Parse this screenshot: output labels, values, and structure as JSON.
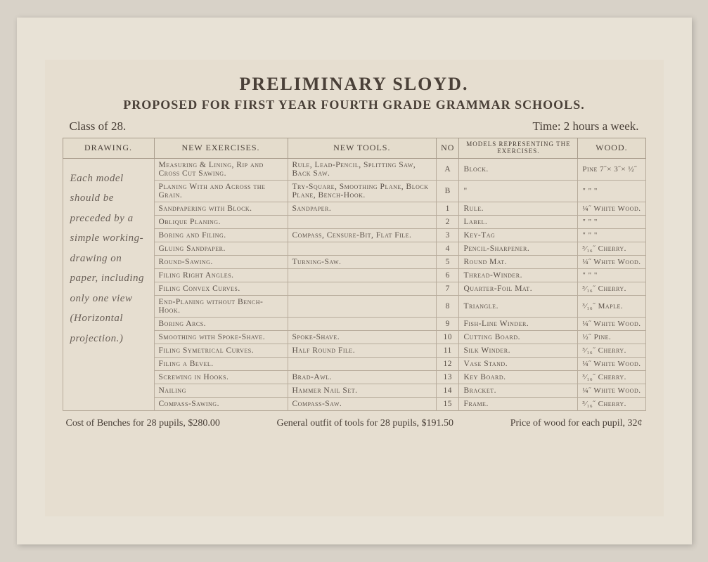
{
  "title": "PRELIMINARY SLOYD.",
  "subtitle": "PROPOSED FOR FIRST YEAR FOURTH GRADE GRAMMAR SCHOOLS.",
  "meta_left": "Class of 28.",
  "meta_right": "Time: 2 hours a week.",
  "columns": {
    "drawing": "DRAWING.",
    "exercises": "NEW EXERCISES.",
    "tools": "NEW TOOLS.",
    "no": "No",
    "models": "MODELS REPRESENTING THE EXERCISES.",
    "wood": "WOOD."
  },
  "drawing_note": "Each model should be preceded by a simple working-drawing on paper, including only one view (Horizontal projection.)",
  "rows": [
    {
      "ex": "Measuring & Lining, Rip and Cross Cut Sawing.",
      "tool": "Rule, Lead-Pencil, Splitting Saw, Back Saw.",
      "no": "A",
      "model": "Block.",
      "wood": "Pine 7˝× 3˝× ½˝"
    },
    {
      "ex": "Planing With and Across the Grain.",
      "tool": "Try-Square, Smoothing Plane, Block Plane, Bench-Hook.",
      "no": "B",
      "model": "\"",
      "wood": "\"   \"   \""
    },
    {
      "ex": "Sandpapering with Block.",
      "tool": "Sandpaper.",
      "no": "1",
      "model": "Rule.",
      "wood": "¼˝ White Wood."
    },
    {
      "ex": "Oblique Planing.",
      "tool": "",
      "no": "2",
      "model": "Label.",
      "wood": "\"   \"   \""
    },
    {
      "ex": "Boring and Filing.",
      "tool": "Compass, Censure-Bit, Flat File.",
      "no": "3",
      "model": "Key-Tag",
      "wood": "\"   \"   \""
    },
    {
      "ex": "Gluing Sandpaper.",
      "tool": "",
      "no": "4",
      "model": "Pencil-Sharpener.",
      "wood": "³⁄₁₆˝ Cherry."
    },
    {
      "ex": "Round-Sawing.",
      "tool": "Turning-Saw.",
      "no": "5",
      "model": "Round Mat.",
      "wood": "¼˝ White Wood."
    },
    {
      "ex": "Filing Right Angles.",
      "tool": "",
      "no": "6",
      "model": "Thread-Winder.",
      "wood": "\"   \"   \""
    },
    {
      "ex": "Filing Convex Curves.",
      "tool": "",
      "no": "7",
      "model": "Quarter-Foil Mat.",
      "wood": "³⁄₁₆˝ Cherry."
    },
    {
      "ex": "End-Planing without Bench-Hook.",
      "tool": "",
      "no": "8",
      "model": "Triangle.",
      "wood": "³⁄₁₆˝ Maple."
    },
    {
      "ex": "Boring Arcs.",
      "tool": "",
      "no": "9",
      "model": "Fish-Line Winder.",
      "wood": "¼˝ White Wood."
    },
    {
      "ex": "Smoothing with Spoke-Shave.",
      "tool": "Spoke-Shave.",
      "no": "10",
      "model": "Cutting Board.",
      "wood": "½˝ Pine."
    },
    {
      "ex": "Filing Symetrical Curves.",
      "tool": "Half Round File.",
      "no": "11",
      "model": "Silk Winder.",
      "wood": "³⁄₁₆˝ Cherry."
    },
    {
      "ex": "Filing a Bevel.",
      "tool": "",
      "no": "12",
      "model": "Vase Stand.",
      "wood": "¼˝ White Wood."
    },
    {
      "ex": "Screwing in Hooks.",
      "tool": "Brad-Awl.",
      "no": "13",
      "model": "Key Board.",
      "wood": "³⁄₁₆˝ Cherry."
    },
    {
      "ex": "Nailing",
      "tool": "Hammer Nail Set.",
      "no": "14",
      "model": "Bracket.",
      "wood": "¼˝ White Wood."
    },
    {
      "ex": "Compass-Sawing.",
      "tool": "Compass-Saw.",
      "no": "15",
      "model": "Frame.",
      "wood": "³⁄₁₆˝ Cherry."
    }
  ],
  "footer": {
    "benches": "Cost of Benches for 28 pupils, $280.00",
    "tools": "General outfit of tools for 28 pupils, $191.50",
    "wood": "Price of wood for each pupil, 32¢"
  }
}
